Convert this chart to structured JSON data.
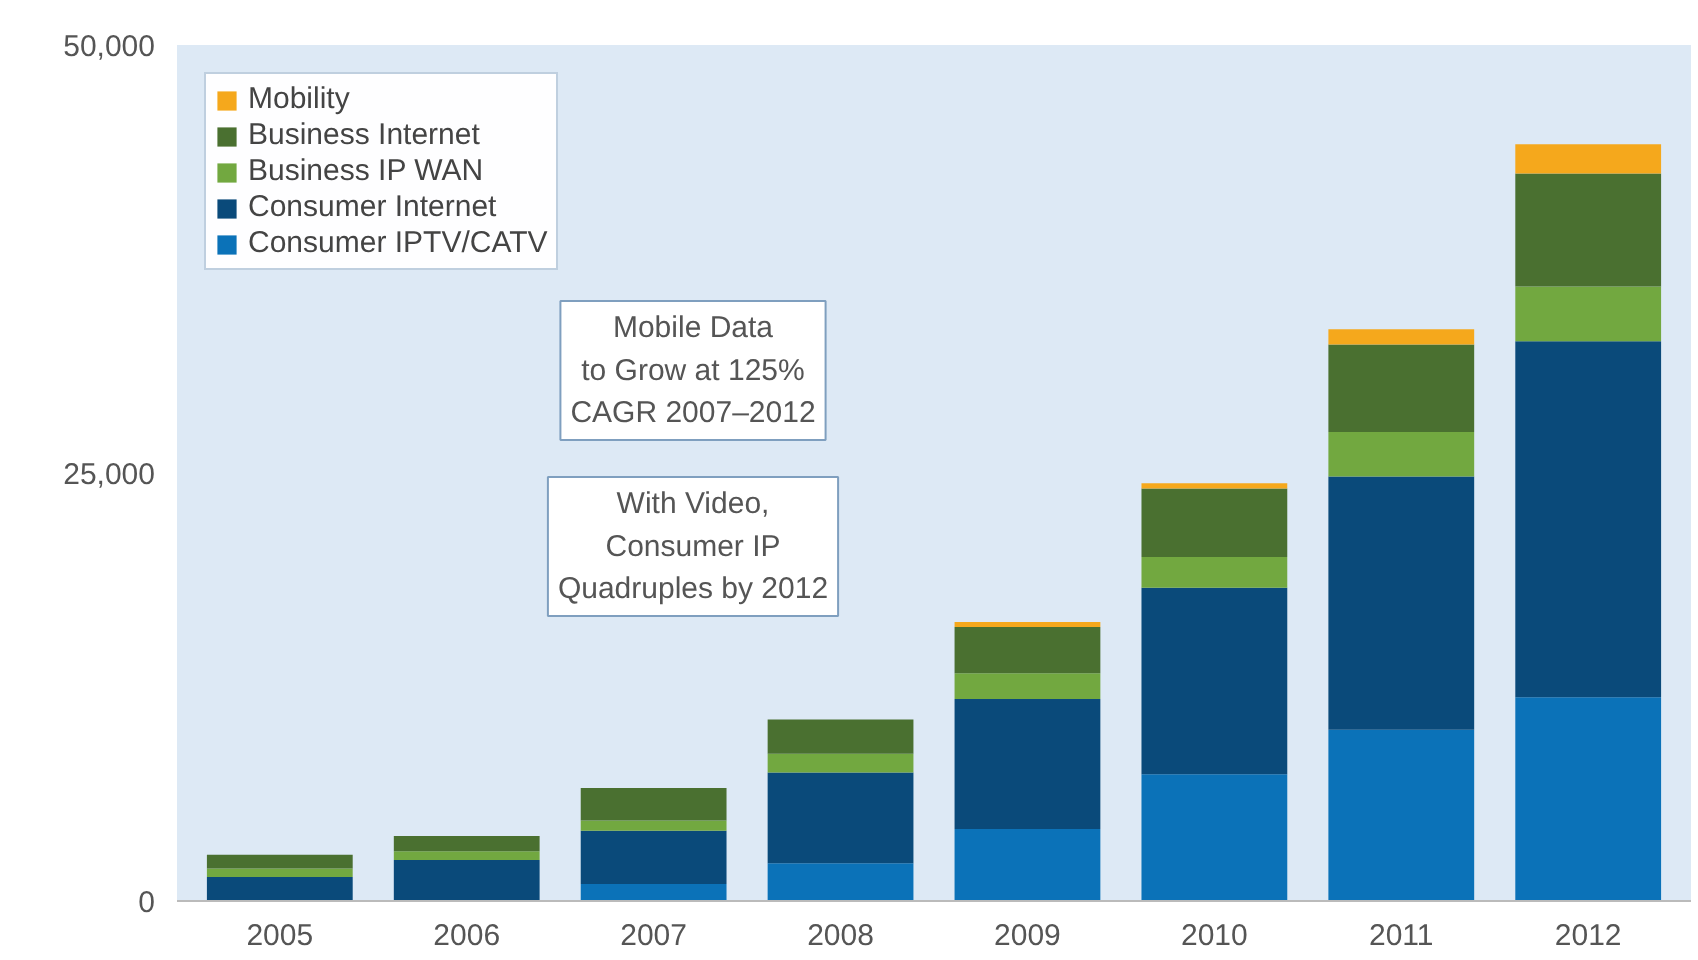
{
  "chart_data": {
    "type": "bar",
    "stacked": true,
    "categories": [
      "2005",
      "2006",
      "2007",
      "2008",
      "2009",
      "2010",
      "2011",
      "2012"
    ],
    "series": [
      {
        "name": "Consumer IPTV/CATV",
        "color": "#0b72b8",
        "values": [
          0,
          0,
          1000,
          2200,
          4200,
          7400,
          10000,
          11900
        ]
      },
      {
        "name": "Consumer Internet",
        "color": "#0a4a7a",
        "values": [
          1400,
          2400,
          3100,
          5300,
          7600,
          10900,
          14800,
          20800
        ]
      },
      {
        "name": "Business IP WAN",
        "color": "#72a840",
        "values": [
          500,
          500,
          600,
          1100,
          1500,
          1800,
          2600,
          3200
        ]
      },
      {
        "name": "Business Internet",
        "color": "#4a7030",
        "values": [
          800,
          900,
          1900,
          2000,
          2700,
          4000,
          5100,
          6600
        ]
      },
      {
        "name": "Mobility",
        "color": "#f5a81c",
        "values": [
          0,
          0,
          0,
          0,
          300,
          300,
          900,
          1700
        ]
      }
    ],
    "ylim": [
      0,
      50000
    ],
    "yticks": [
      0,
      {
        "value": 25000,
        "label": "25,000"
      },
      {
        "value": 50000,
        "label": "50,000"
      }
    ],
    "grid": false,
    "legend": "top left",
    "annotations": [
      "Mobile Data\nto Grow at 125%\nCAGR 2007–2012",
      "With Video,\nConsumer IP\nQuadruples by 2012"
    ]
  }
}
